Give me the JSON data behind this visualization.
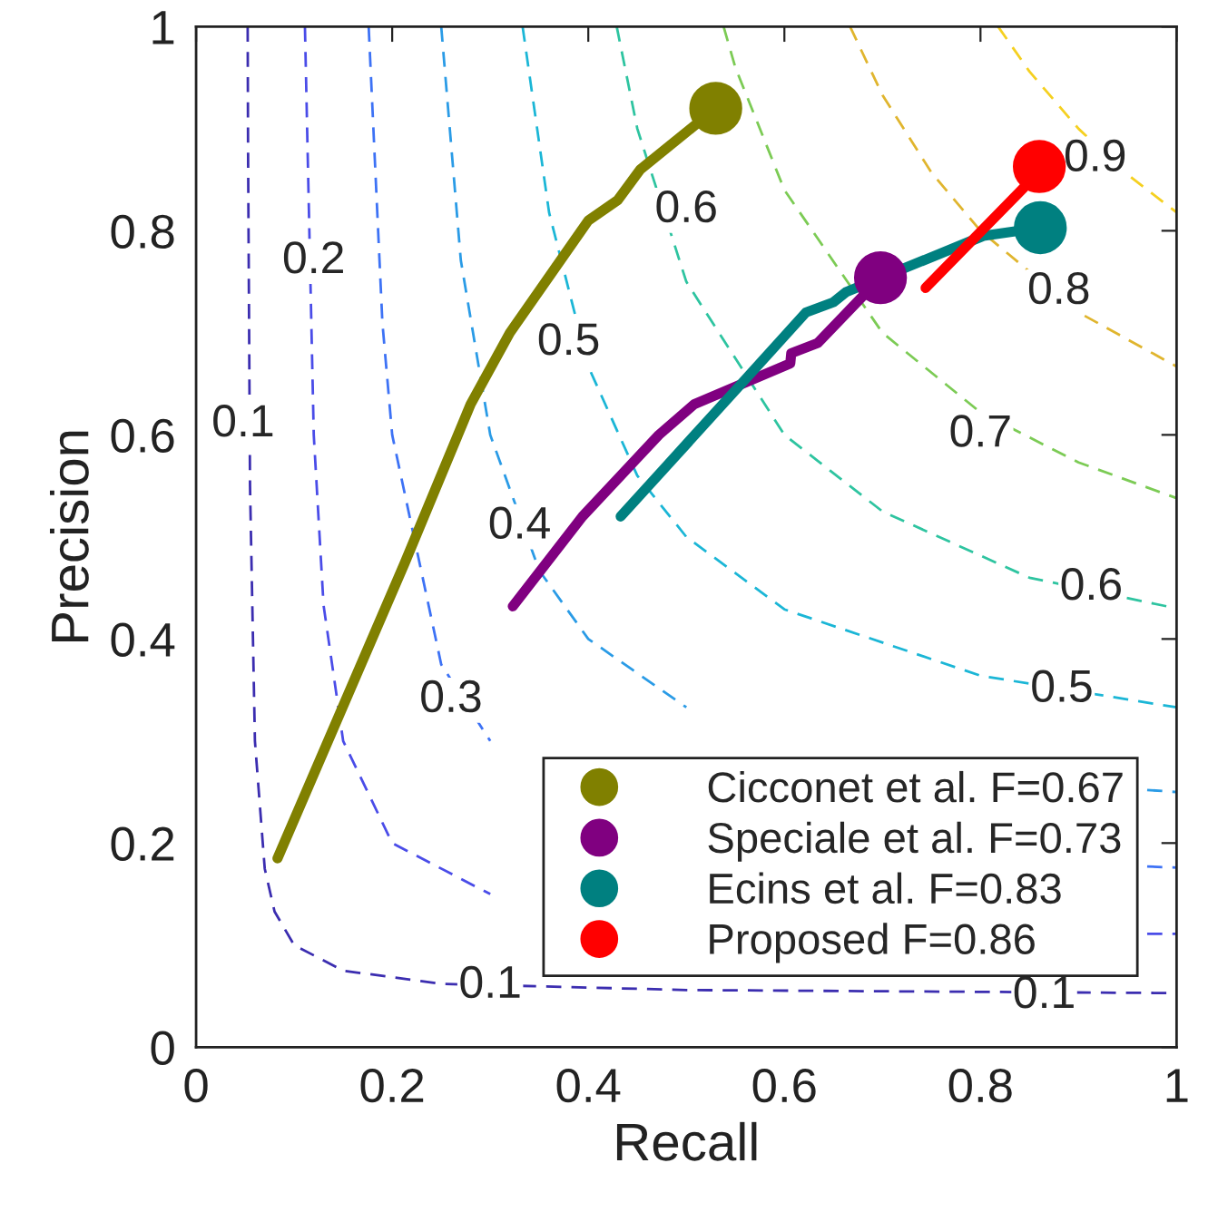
{
  "chart_data": {
    "type": "line",
    "xlabel": "Recall",
    "ylabel": "Precision",
    "xlim": [
      0,
      1
    ],
    "ylim": [
      0,
      1
    ],
    "xticks": [
      0,
      0.2,
      0.4,
      0.6,
      0.8,
      1
    ],
    "yticks": [
      0,
      0.2,
      0.4,
      0.6,
      0.8,
      1
    ],
    "grid": false,
    "legend": "bottom right",
    "series": [
      {
        "color": "#3b2db0",
        "line_style": "dashed",
        "marker": "none",
        "x": [
          0.0526,
          0.053,
          0.055,
          0.06,
          0.07,
          0.08,
          0.1,
          0.15,
          0.25,
          0.5,
          1
        ],
        "values": [
          1,
          0.88,
          0.55,
          0.3,
          0.175,
          0.133,
          0.1,
          0.075,
          0.062,
          0.056,
          0.053
        ]
      },
      {
        "color": "#4a4ce8",
        "line_style": "dashed",
        "marker": "none",
        "x": [
          0.111,
          0.12,
          0.13,
          0.15,
          0.2,
          0.3,
          0.5,
          0.97,
          1
        ],
        "values": [
          1,
          0.6,
          0.433,
          0.3,
          0.2,
          0.15,
          null,
          0.111,
          0.111
        ]
      },
      {
        "color": "#3d72f5",
        "line_style": "dashed",
        "marker": "none",
        "x": [
          0.176,
          0.19,
          0.2,
          0.25,
          0.3,
          0.4,
          0.6,
          0.97,
          1
        ],
        "values": [
          1,
          0.71,
          0.6,
          0.375,
          0.3,
          null,
          null,
          0.177,
          0.176
        ]
      },
      {
        "color": "#2a9be6",
        "line_style": "dashed",
        "marker": "none",
        "x": [
          0.25,
          0.27,
          0.3,
          0.35,
          0.4,
          0.5,
          0.7,
          0.97,
          1
        ],
        "values": [
          1,
          0.771,
          0.6,
          0.467,
          0.4,
          0.333,
          null,
          0.252,
          0.25
        ]
      },
      {
        "color": "#1bb6d6",
        "line_style": "dashed",
        "marker": "none",
        "x": [
          0.333,
          0.36,
          0.4,
          0.45,
          0.5,
          0.6,
          0.8,
          1
        ],
        "values": [
          1,
          0.818,
          0.667,
          0.56,
          0.5,
          0.429,
          0.364,
          0.333
        ]
      },
      {
        "color": "#2ec4a0",
        "line_style": "dashed",
        "marker": "none",
        "x": [
          0.429,
          0.45,
          0.5,
          0.6,
          0.7,
          0.85,
          1
        ],
        "values": [
          1,
          0.9,
          0.75,
          0.6,
          0.525,
          0.46,
          0.43
        ]
      },
      {
        "color": "#7ccb55",
        "line_style": "dashed",
        "marker": "none",
        "x": [
          0.538,
          0.55,
          0.6,
          0.7,
          0.8,
          0.9,
          1
        ],
        "values": [
          1,
          0.96,
          0.84,
          0.7,
          0.622,
          0.573,
          0.538
        ]
      },
      {
        "color": "#e0b52e",
        "line_style": "dashed",
        "marker": "none",
        "x": [
          0.667,
          0.7,
          0.75,
          0.8,
          0.9,
          1
        ],
        "values": [
          1,
          0.933,
          0.857,
          0.8,
          0.72,
          0.667
        ]
      },
      {
        "color": "#f5d020",
        "line_style": "dashed",
        "marker": "none",
        "x": [
          0.818,
          0.85,
          0.9,
          0.95,
          1
        ],
        "values": [
          1,
          0.956,
          0.9,
          0.855,
          0.818
        ]
      },
      {
        "color": "#808000",
        "line_style": "solid",
        "marker": "none",
        "x": [
          0.083,
          0.213,
          0.28,
          0.32,
          0.4,
          0.43,
          0.453,
          0.53
        ],
        "values": [
          0.185,
          0.475,
          0.63,
          0.7,
          0.81,
          0.83,
          0.86,
          0.92
        ]
      },
      {
        "color": "#800080",
        "line_style": "solid",
        "marker": "none",
        "x": [
          0.323,
          0.394,
          0.472,
          0.508,
          0.606,
          0.607,
          0.634,
          0.698
        ],
        "values": [
          0.432,
          0.52,
          0.6,
          0.63,
          0.67,
          0.68,
          0.69,
          0.754
        ]
      },
      {
        "color": "#008080",
        "line_style": "solid",
        "marker": "none",
        "x": [
          0.433,
          0.556,
          0.622,
          0.65,
          0.663,
          0.803,
          0.861
        ],
        "values": [
          0.52,
          0.65,
          0.72,
          0.73,
          0.74,
          0.795,
          0.803
        ]
      },
      {
        "color": "#ff0000",
        "line_style": "solid",
        "marker": "none",
        "x": [
          0.744,
          0.847,
          0.86
        ],
        "values": [
          0.744,
          0.845,
          0.863
        ]
      },
      {
        "type": "scatter",
        "name": "Cicconet et al. F=0.67",
        "color": "#808000",
        "marker": "circle",
        "x": [
          0.53
        ],
        "values": [
          0.92
        ]
      },
      {
        "type": "scatter",
        "name": "Speciale et al. F=0.73",
        "color": "#800080",
        "marker": "circle",
        "x": [
          0.698
        ],
        "values": [
          0.754
        ]
      },
      {
        "type": "scatter",
        "name": "Ecins et al. F=0.83",
        "color": "#008080",
        "marker": "circle",
        "x": [
          0.861
        ],
        "values": [
          0.803
        ]
      },
      {
        "type": "scatter",
        "name": "Proposed F=0.86",
        "color": "#ff0000",
        "marker": "circle",
        "x": [
          0.86
        ],
        "values": [
          0.863
        ]
      }
    ],
    "annotations": [
      {
        "text": "0.1",
        "x": 0.048,
        "y": 0.61
      },
      {
        "text": "0.2",
        "x": 0.12,
        "y": 0.77
      },
      {
        "text": "0.3",
        "x": 0.26,
        "y": 0.34
      },
      {
        "text": "0.4",
        "x": 0.33,
        "y": 0.51
      },
      {
        "text": "0.5",
        "x": 0.38,
        "y": 0.69
      },
      {
        "text": "0.6",
        "x": 0.5,
        "y": 0.82
      },
      {
        "text": "0.7",
        "x": 0.8,
        "y": 0.6
      },
      {
        "text": "0.8",
        "x": 0.88,
        "y": 0.74
      },
      {
        "text": "0.9",
        "x": 0.917,
        "y": 0.87
      },
      {
        "text": "0.6",
        "x": 0.913,
        "y": 0.45
      },
      {
        "text": "0.5",
        "x": 0.883,
        "y": 0.35
      },
      {
        "text": "0.1",
        "x": 0.865,
        "y": 0.05
      },
      {
        "text": "0.1",
        "x": 0.3,
        "y": 0.06
      }
    ]
  }
}
